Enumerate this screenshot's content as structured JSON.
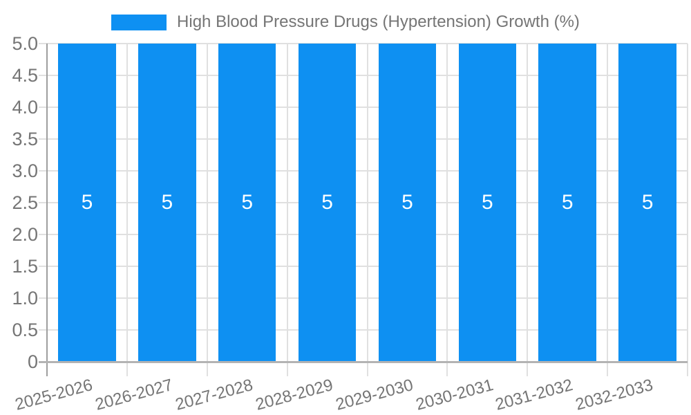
{
  "chart_data": {
    "type": "bar",
    "title": "",
    "legend": {
      "position": "top",
      "label": "High Blood Pressure Drugs (Hypertension) Growth (%)"
    },
    "categories": [
      "2025-2026",
      "2026-2027",
      "2027-2028",
      "2028-2029",
      "2029-2030",
      "2030-2031",
      "2031-2032",
      "2032-2033"
    ],
    "series": [
      {
        "name": "High Blood Pressure Drugs (Hypertension) Growth (%)",
        "values": [
          5,
          5,
          5,
          5,
          5,
          5,
          5,
          5
        ],
        "value_labels": [
          "5",
          "5",
          "5",
          "5",
          "5",
          "5",
          "5",
          "5"
        ]
      }
    ],
    "xlabel": "",
    "ylabel": "",
    "ylim": [
      0,
      5
    ],
    "ytick_values": [
      0,
      0.5,
      1,
      1.5,
      2,
      2.5,
      3,
      3.5,
      4,
      4.5,
      5
    ],
    "ytick_labels": [
      "0",
      "0.5",
      "1.0",
      "1.5",
      "2.0",
      "2.5",
      "3.0",
      "3.5",
      "4.0",
      "4.5",
      "5.0"
    ],
    "grid": true,
    "colors": {
      "bar": "#0E90F2",
      "gridline": "#E0E0E0",
      "y_axis_line": "#9E9E9E",
      "x_axis_line": "#B3B3B3",
      "tick_text": "#757575",
      "legend_text": "#757575",
      "bar_value_text": "#FFFFFF",
      "background": "#FFFFFF"
    }
  }
}
